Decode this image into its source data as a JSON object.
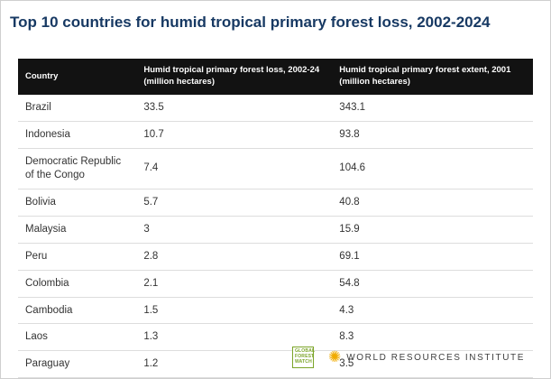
{
  "title": "Top 10 countries for humid tropical primary forest loss, 2002-2024",
  "table_header": {
    "country": "Country",
    "loss_label": "Humid tropical primary forest loss, 2002-24",
    "loss_unit": "(million hectares)",
    "extent_label": "Humid tropical primary forest extent, 2001",
    "extent_unit": "(million hectares)"
  },
  "chart_data": {
    "type": "table",
    "title": "Top 10 countries for humid tropical primary forest loss, 2002-2024",
    "columns": [
      "Country",
      "Humid tropical primary forest loss, 2002-24 (million hectares)",
      "Humid tropical primary forest extent, 2001 (million hectares)"
    ],
    "rows": [
      [
        "Brazil",
        "33.5",
        "343.1"
      ],
      [
        "Indonesia",
        "10.7",
        "93.8"
      ],
      [
        "Democratic Republic of the Congo",
        "7.4",
        "104.6"
      ],
      [
        "Bolivia",
        "5.7",
        "40.8"
      ],
      [
        "Malaysia",
        "3",
        "15.9"
      ],
      [
        "Peru",
        "2.8",
        "69.1"
      ],
      [
        "Colombia",
        "2.1",
        "54.8"
      ],
      [
        "Cambodia",
        "1.5",
        "4.3"
      ],
      [
        "Laos",
        "1.3",
        "8.3"
      ],
      [
        "Paraguay",
        "1.2",
        "3.5"
      ]
    ]
  },
  "footer": {
    "gfw_lines": [
      "GLOBAL",
      "FOREST",
      "WATCH"
    ],
    "wri_label": "WORLD RESOURCES INSTITUTE"
  },
  "colors": {
    "title": "#173963",
    "header_bg": "#121212",
    "text": "#333333",
    "border": "#dddddd",
    "gfw_green": "#7ba428",
    "wri_gold": "#f0ab00"
  }
}
